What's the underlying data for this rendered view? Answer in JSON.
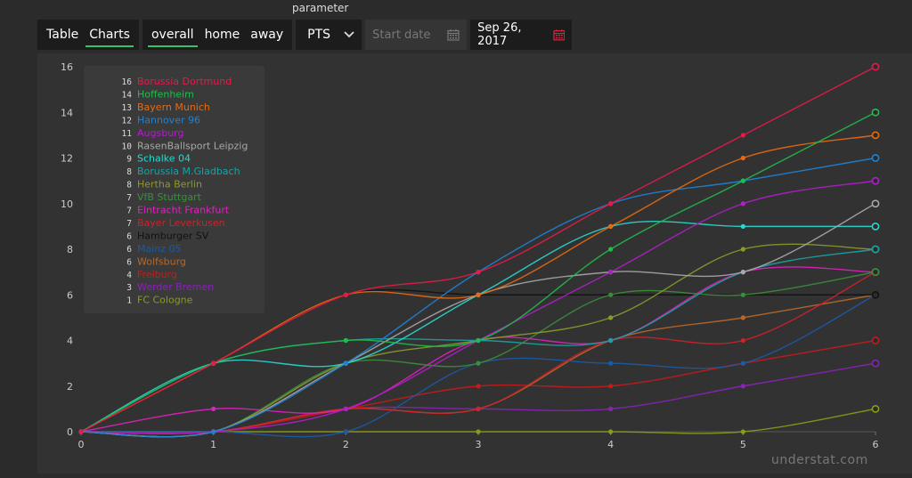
{
  "toolbar": {
    "view_tabs": [
      "Table",
      "Charts"
    ],
    "venue_tabs": [
      "overall",
      "home",
      "away"
    ],
    "parameter_label": "parameter",
    "parameter_value": "PTS",
    "start_date_placeholder": "Start date",
    "end_date_value": "Sep 26, 2017"
  },
  "watermark": "understat.com",
  "colors": {
    "accent": "#33c26a",
    "background": "#2b2b2b",
    "calendar_active": "#d9263b"
  },
  "chart_data": {
    "type": "line",
    "x": [
      0,
      1,
      2,
      3,
      4,
      5,
      6
    ],
    "xlim": [
      0,
      6
    ],
    "ylim": [
      0,
      16
    ],
    "yticks": [
      0,
      2,
      4,
      6,
      8,
      10,
      12,
      14,
      16
    ],
    "xticks": [
      0,
      1,
      2,
      3,
      4,
      5,
      6
    ],
    "grid": false,
    "legend_position": "top-left",
    "series": [
      {
        "name": "Borussia Dortmund",
        "legend_value": "16",
        "color": "#e8194a",
        "values": [
          0,
          3,
          6,
          7,
          10,
          13,
          16
        ]
      },
      {
        "name": "Hoffenheim",
        "legend_value": "14",
        "color": "#1fbd4b",
        "values": [
          0,
          3,
          4,
          4,
          8,
          11,
          14
        ]
      },
      {
        "name": "Bayern Munich",
        "legend_value": "13",
        "color": "#e86a10",
        "values": [
          0,
          3,
          6,
          6,
          9,
          12,
          13
        ]
      },
      {
        "name": "Hannover 96",
        "legend_value": "12",
        "color": "#1f82d6",
        "values": [
          0,
          0,
          3,
          7,
          10,
          11,
          12
        ]
      },
      {
        "name": "Augsburg",
        "legend_value": "11",
        "color": "#b01ec9",
        "values": [
          0,
          0,
          1,
          4,
          7,
          10,
          11
        ]
      },
      {
        "name": "RasenBallsport Leipzig",
        "legend_value": "10",
        "color": "#a8a8a8",
        "values": [
          0,
          0,
          3,
          6,
          7,
          7,
          10
        ]
      },
      {
        "name": "Schalke 04",
        "legend_value": "9",
        "color": "#28d9d2",
        "values": [
          0,
          3,
          3,
          6,
          9,
          9,
          9
        ]
      },
      {
        "name": "Borussia M.Gladbach",
        "legend_value": "8",
        "color": "#1aa3a3",
        "values": [
          0,
          3,
          4,
          4,
          4,
          7,
          8
        ]
      },
      {
        "name": "Hertha Berlin",
        "legend_value": "8",
        "color": "#8c9a2a",
        "values": [
          0,
          0,
          3,
          4,
          5,
          8,
          8
        ]
      },
      {
        "name": "VfB Stuttgart",
        "legend_value": "7",
        "color": "#3a8f3a",
        "values": [
          0,
          0,
          3,
          3,
          6,
          6,
          7
        ]
      },
      {
        "name": "Eintracht Frankfurt",
        "legend_value": "7",
        "color": "#e020c0",
        "values": [
          0,
          1,
          1,
          4,
          4,
          7,
          7
        ]
      },
      {
        "name": "Bayer Leverkusen",
        "legend_value": "7",
        "color": "#d0202a",
        "values": [
          0,
          0,
          1,
          1,
          4,
          4,
          7
        ]
      },
      {
        "name": "Hamburger SV",
        "legend_value": "6",
        "color": "#111111",
        "values": [
          0,
          3,
          6,
          6,
          6,
          6,
          6
        ]
      },
      {
        "name": "Mainz 05",
        "legend_value": "6",
        "color": "#1a5aa8",
        "values": [
          0,
          0,
          0,
          3,
          3,
          3,
          6
        ]
      },
      {
        "name": "Wolfsburg",
        "legend_value": "6",
        "color": "#b8682a",
        "values": [
          0,
          0,
          1,
          1,
          4,
          5,
          6
        ]
      },
      {
        "name": "Freiburg",
        "legend_value": "4",
        "color": "#c81a1a",
        "values": [
          0,
          0,
          1,
          2,
          2,
          3,
          4
        ]
      },
      {
        "name": "Werder Bremen",
        "legend_value": "3",
        "color": "#8a22b8",
        "values": [
          0,
          0,
          1,
          1,
          1,
          2,
          3
        ]
      },
      {
        "name": "FC Cologne",
        "legend_value": "1",
        "color": "#8c9a1a",
        "values": [
          0,
          0,
          0,
          0,
          0,
          0,
          1
        ]
      }
    ]
  }
}
